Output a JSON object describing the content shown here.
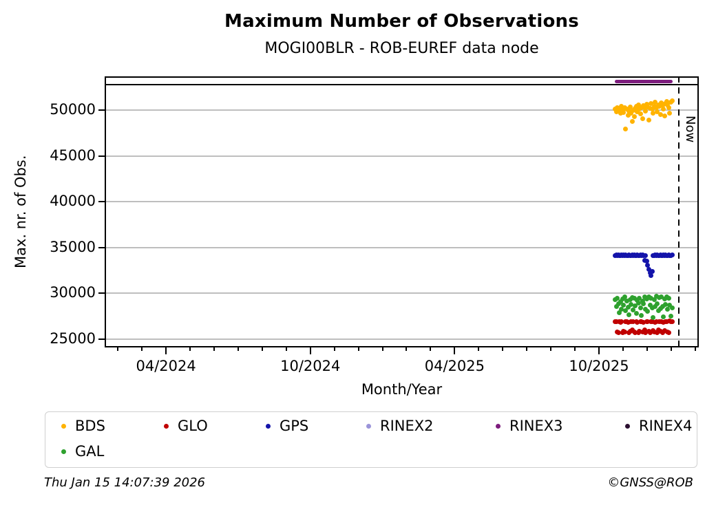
{
  "header": {
    "title": "Maximum Number of Observations",
    "subtitle": "MOGI00BLR - ROB-EUREF data node"
  },
  "footer": {
    "timestamp": "Thu Jan 15 14:07:39 2026",
    "credit": "©GNSS@ROB"
  },
  "chart_data": {
    "type": "scatter",
    "title": "Maximum Number of Observations",
    "subtitle": "MOGI00BLR - ROB-EUREF data node",
    "xlabel": "Month/Year",
    "ylabel": "Max. nr. of Obs.",
    "x_unit": "months since 2024-01-01",
    "xlim": [
      0.45,
      25.15
    ],
    "ylim": [
      24100,
      53680
    ],
    "grid": "horizontal-only",
    "grid_color": "#bebebe",
    "y_ticks": [
      25000,
      30000,
      35000,
      40000,
      45000,
      50000
    ],
    "x_ticks_major": [
      {
        "m": 3,
        "label": "04/2024"
      },
      {
        "m": 9,
        "label": "10/2024"
      },
      {
        "m": 15,
        "label": "04/2025"
      },
      {
        "m": 21,
        "label": "10/2025"
      }
    ],
    "x_minor_tick_months": [
      1,
      2,
      3,
      4,
      5,
      6,
      7,
      8,
      9,
      10,
      11,
      12,
      13,
      14,
      15,
      16,
      17,
      18,
      19,
      20,
      21,
      22,
      23,
      24,
      25
    ],
    "now_line": {
      "m": 24.32,
      "label": "Now",
      "style": "dashed-black"
    },
    "rinex_strip_divider_value": 52780,
    "m_grid": {
      "start": 21.68,
      "step": 0.0436,
      "count": 55
    },
    "series": [
      {
        "name": "BDS",
        "color": "#FFB300",
        "type": "scatter",
        "values": [
          50150,
          49800,
          50300,
          49950,
          50200,
          49650,
          50400,
          50050,
          49750,
          50250,
          47900,
          50100,
          49450,
          49900,
          50350,
          49700,
          48750,
          50000,
          49300,
          50200,
          50450,
          49850,
          50550,
          50150,
          49600,
          50300,
          49050,
          50500,
          50250,
          49900,
          50650,
          50350,
          48950,
          50200,
          50750,
          50100,
          49700,
          50450,
          50900,
          50300,
          49850,
          50600,
          50400,
          49500,
          50800,
          50500,
          50150,
          49350,
          50700,
          50950,
          50550,
          50250,
          49700,
          50850,
          51050
        ]
      },
      {
        "name": "GLO",
        "color": "#C00000",
        "type": "scatter",
        "values": [
          26900,
          26950,
          25800,
          25750,
          26900,
          26850,
          26950,
          25700,
          25850,
          25800,
          26900,
          26950,
          26850,
          25750,
          25900,
          26900,
          26000,
          26950,
          25800,
          25750,
          26900,
          26850,
          25700,
          25850,
          26950,
          26900,
          25800,
          26850,
          26000,
          25750,
          26950,
          26900,
          25850,
          25700,
          26900,
          26950,
          25950,
          25800,
          26850,
          26900,
          25750,
          26000,
          26950,
          25850,
          26900,
          25700,
          26850,
          25950,
          26900,
          26950,
          25800,
          25750,
          27000,
          26900,
          26950
        ]
      },
      {
        "name": "GPS",
        "color": "#1414AA",
        "type": "scatter",
        "values": [
          34160,
          34180,
          34150,
          34170,
          34140,
          34160,
          34190,
          34150,
          34170,
          34160,
          34180,
          34150,
          34160,
          34170,
          34140,
          34160,
          34180,
          34150,
          34170,
          34160,
          34150,
          34180,
          34160,
          34140,
          34170,
          34160,
          34180,
          34150,
          33600,
          34160,
          33550,
          33100,
          32650,
          32250,
          31950,
          32400,
          34120,
          34160,
          34180,
          34150,
          34170,
          34160,
          34140,
          34180,
          34160,
          34150,
          34170,
          34160,
          34180,
          34150,
          34160,
          34170,
          34150,
          34160,
          34180
        ]
      },
      {
        "name": "GAL",
        "color": "#2EA12E",
        "type": "scatter",
        "values": [
          29300,
          28600,
          29500,
          28900,
          27900,
          29100,
          28300,
          29400,
          28700,
          29600,
          28100,
          29200,
          28500,
          27700,
          29350,
          28800,
          29550,
          28200,
          29450,
          28650,
          27850,
          29250,
          28950,
          29500,
          28400,
          27600,
          29150,
          28850,
          29600,
          28300,
          29400,
          28050,
          29650,
          28750,
          29500,
          28450,
          27350,
          29300,
          28600,
          29700,
          28900,
          28150,
          29550,
          28350,
          29650,
          28550,
          27450,
          29400,
          28800,
          29600,
          28250,
          29500,
          28700,
          27550,
          28400
        ]
      },
      {
        "name": "RINEX2",
        "color": "#9B94D9",
        "type": "scatter",
        "values": []
      },
      {
        "name": "RINEX3",
        "color": "#7D1C7D",
        "type": "line",
        "value": 53100,
        "m_range": [
          21.66,
          24.07
        ],
        "linewidth": 5
      },
      {
        "name": "RINEX4",
        "color": "#2B0F30",
        "type": "scatter",
        "values": []
      }
    ],
    "legend": [
      {
        "label": "BDS",
        "color": "#FFB300"
      },
      {
        "label": "GLO",
        "color": "#C00000"
      },
      {
        "label": "GPS",
        "color": "#1414AA"
      },
      {
        "label": "RINEX2",
        "color": "#9B94D9"
      },
      {
        "label": "RINEX3",
        "color": "#7D1C7D"
      },
      {
        "label": "RINEX4",
        "color": "#2B0F30"
      },
      {
        "label": "GAL",
        "color": "#2EA12E"
      }
    ],
    "legend_position": "bottom"
  }
}
